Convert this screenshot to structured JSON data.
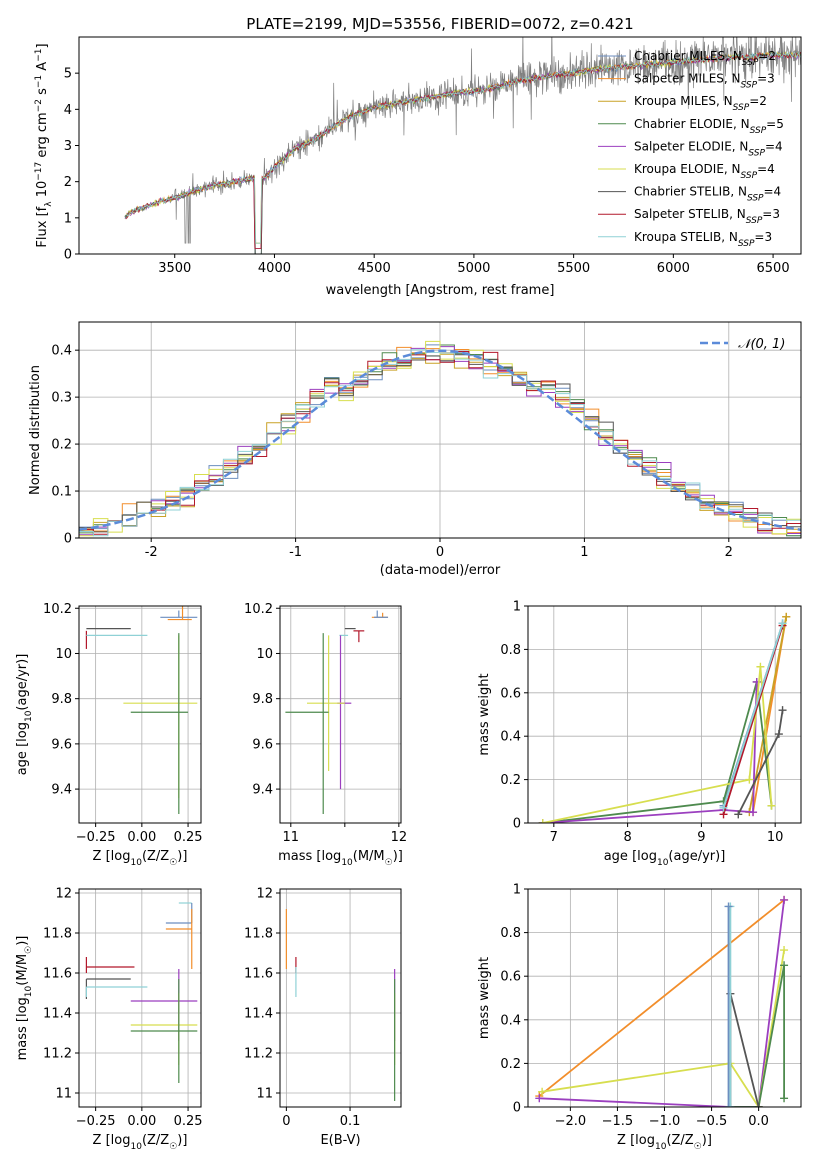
{
  "figure": {
    "title": "PLATE=2199, MJD=53556, FIBERID=0072, z=0.421"
  },
  "colors": {
    "Chabrier MILES": "#6c8ebf",
    "Salpeter MILES": "#f28e2b",
    "Kroupa MILES": "#c9a227",
    "Chabrier ELODIE": "#4e8a4e",
    "Salpeter ELODIE": "#9b3fbf",
    "Kroupa ELODIE": "#d7de4f",
    "Chabrier STELIB": "#555555",
    "Salpeter STELIB": "#b2182b",
    "Kroupa STELIB": "#8fd1d6",
    "data": "#808080",
    "normal": "#5b8bd9"
  },
  "chart_data": [
    {
      "id": "spectrum",
      "type": "line",
      "xlabel": "wavelength [Angstrom, rest frame]",
      "ylabel": "Flux [f_λ 10^-17 erg cm^-2 s^-1 A^-1]",
      "xlim": [
        3020,
        6640
      ],
      "ylim": [
        0,
        6
      ],
      "xticks": [
        3500,
        4000,
        4500,
        5000,
        5500,
        6000,
        6500
      ],
      "yticks": [
        0,
        1,
        2,
        3,
        4,
        5
      ],
      "grid": false,
      "legend_position": "right",
      "legend": [
        {
          "name": "Chabrier MILES",
          "nssp": "2"
        },
        {
          "name": "Salpeter MILES",
          "nssp": "3"
        },
        {
          "name": "Kroupa MILES",
          "nssp": "2"
        },
        {
          "name": "Chabrier ELODIE",
          "nssp": "5"
        },
        {
          "name": "Salpeter ELODIE",
          "nssp": "4"
        },
        {
          "name": "Kroupa ELODIE",
          "nssp": "4"
        },
        {
          "name": "Chabrier STELIB",
          "nssp": "4"
        },
        {
          "name": "Salpeter STELIB",
          "nssp": "3"
        },
        {
          "name": "Kroupa STELIB",
          "nssp": "3"
        }
      ],
      "continuum": {
        "x": [
          3250,
          3300,
          3400,
          3500,
          3600,
          3700,
          3800,
          3900,
          3950,
          4000,
          4100,
          4200,
          4300,
          4400,
          4500,
          4600,
          4700,
          4800,
          4900,
          5000,
          5100,
          5200,
          5300,
          5400,
          5500,
          5600,
          5700,
          5800,
          5900,
          6000,
          6100,
          6200,
          6300,
          6400,
          6500
        ],
        "y": [
          1.05,
          1.2,
          1.4,
          1.55,
          1.75,
          1.9,
          2.0,
          2.1,
          2.1,
          2.4,
          2.9,
          3.15,
          3.55,
          3.85,
          4.05,
          4.15,
          4.25,
          4.35,
          4.45,
          4.5,
          4.6,
          4.75,
          4.85,
          4.95,
          5.0,
          5.1,
          5.15,
          5.2,
          5.25,
          5.3,
          5.35,
          5.4,
          5.45,
          5.45,
          5.5
        ]
      }
    },
    {
      "id": "residuals",
      "type": "line",
      "xlabel": "(data-model)/error",
      "ylabel": "Normed distribution",
      "xlim": [
        -2.5,
        2.5
      ],
      "ylim": [
        0,
        0.46
      ],
      "xticks": [
        -2,
        -1,
        0,
        1,
        2
      ],
      "yticks": [
        0.0,
        0.1,
        0.2,
        0.3,
        0.4
      ],
      "grid": true,
      "legend_position": "top-right",
      "normal_label": "𝒩(0, 1)"
    },
    {
      "id": "age-vs-Z",
      "type": "scatter",
      "xlabel": "Z [log10(Z/Z☉)]",
      "ylabel": "age [log10(age/yr)]",
      "xlim": [
        -0.34,
        0.32
      ],
      "ylim": [
        9.25,
        10.21
      ],
      "xticks": [
        -0.25,
        0.0,
        0.25
      ],
      "xtick_labels": [
        "−0.25",
        "0.00",
        "0.25"
      ],
      "yticks": [
        9.4,
        9.6,
        9.8,
        10.0,
        10.2
      ],
      "grid": true,
      "points": [
        {
          "model": "Chabrier MILES",
          "x": 0.2,
          "y": 10.16,
          "xerr": [
            0.1,
            0.1
          ],
          "yerr": [
            0.0,
            0.03
          ]
        },
        {
          "model": "Salpeter MILES",
          "x": 0.22,
          "y": 10.15,
          "xerr": [
            0.08,
            0.05
          ],
          "yerr": [
            0.0,
            0.08
          ]
        },
        {
          "model": "Salpeter STELIB",
          "x": -0.3,
          "y": 10.1,
          "xerr": [
            0.0,
            0.0
          ],
          "yerr": [
            0.08,
            0.0
          ]
        },
        {
          "model": "Chabrier STELIB",
          "x": -0.3,
          "y": 10.11,
          "xerr": [
            0.0,
            0.24
          ],
          "yerr": [
            0.0,
            0.0
          ]
        },
        {
          "model": "Kroupa STELIB",
          "x": -0.3,
          "y": 10.08,
          "xerr": [
            0.0,
            0.33
          ],
          "yerr": [
            0.0,
            0.0
          ]
        },
        {
          "model": "Kroupa ELODIE",
          "x": 0.2,
          "y": 9.78,
          "xerr": [
            0.3,
            0.1
          ],
          "yerr": [
            0.42,
            0.3
          ]
        },
        {
          "model": "Chabrier ELODIE",
          "x": 0.2,
          "y": 9.74,
          "xerr": [
            0.26,
            0.05
          ],
          "yerr": [
            0.45,
            0.35
          ]
        }
      ]
    },
    {
      "id": "age-vs-mass",
      "type": "scatter",
      "xlabel": "mass [log10(M/M☉)]",
      "ylabel": "",
      "xlim": [
        10.9,
        12.02
      ],
      "ylim": [
        9.25,
        10.21
      ],
      "xticks": [
        11,
        11.5,
        12
      ],
      "xtick_labels": [
        "11",
        "",
        "12"
      ],
      "yticks": [
        9.4,
        9.6,
        9.8,
        10.0,
        10.2
      ],
      "grid": true,
      "points": [
        {
          "model": "Salpeter MILES",
          "x": 11.85,
          "y": 10.16,
          "xerr": [
            0.1,
            0.05
          ],
          "yerr": [
            0.0,
            0.02
          ]
        },
        {
          "model": "Chabrier MILES",
          "x": 11.8,
          "y": 10.16,
          "xerr": [
            0.03,
            0.1
          ],
          "yerr": [
            0.0,
            0.03
          ]
        },
        {
          "model": "Salpeter STELIB",
          "x": 11.63,
          "y": 10.1,
          "xerr": [
            0.05,
            0.05
          ],
          "yerr": [
            0.05,
            0.0
          ]
        },
        {
          "model": "Chabrier STELIB",
          "x": 11.55,
          "y": 10.11,
          "xerr": [
            0.05,
            0.05
          ],
          "yerr": [
            0.0,
            0.0
          ]
        },
        {
          "model": "Kroupa STELIB",
          "x": 11.53,
          "y": 10.08,
          "xerr": [
            0.08,
            0.0
          ],
          "yerr": [
            0.0,
            0.0
          ]
        },
        {
          "model": "Salpeter ELODIE",
          "x": 11.46,
          "y": 9.78,
          "xerr": [
            0.03,
            0.1
          ],
          "yerr": [
            0.38,
            0.3
          ]
        },
        {
          "model": "Kroupa ELODIE",
          "x": 11.35,
          "y": 9.78,
          "xerr": [
            0.2,
            0.15
          ],
          "yerr": [
            0.3,
            0.3
          ]
        },
        {
          "model": "Chabrier ELODIE",
          "x": 11.3,
          "y": 9.74,
          "xerr": [
            0.35,
            0.05
          ],
          "yerr": [
            0.45,
            0.35
          ]
        }
      ]
    },
    {
      "id": "mass-weight-vs-age",
      "type": "line",
      "xlabel": "age [log10(age/yr)]",
      "ylabel": "mass weight",
      "xlim": [
        6.65,
        10.35
      ],
      "ylim": [
        0,
        1
      ],
      "xticks": [
        7,
        8,
        9,
        10
      ],
      "yticks": [
        0.0,
        0.2,
        0.4,
        0.6,
        0.8,
        1.0
      ],
      "grid": true,
      "series": [
        {
          "model": "Chabrier MILES",
          "x": [
            9.3,
            10.1
          ],
          "y": [
            0.08,
            0.92
          ]
        },
        {
          "model": "Salpeter MILES",
          "x": [
            9.7,
            10.15
          ],
          "y": [
            0.05,
            0.95
          ]
        },
        {
          "model": "Kroupa MILES",
          "x": [
            9.65,
            10.15
          ],
          "y": [
            0.05,
            0.95
          ]
        },
        {
          "model": "Chabrier ELODIE",
          "x": [
            6.85,
            9.3,
            9.75,
            9.95
          ],
          "y": [
            0.0,
            0.1,
            0.65,
            0.08
          ]
        },
        {
          "model": "Salpeter ELODIE",
          "x": [
            6.85,
            9.3,
            9.7,
            9.75
          ],
          "y": [
            0.0,
            0.06,
            0.05,
            0.65
          ]
        },
        {
          "model": "Kroupa ELODIE",
          "x": [
            6.85,
            9.65,
            9.8,
            9.95
          ],
          "y": [
            0.0,
            0.2,
            0.72,
            0.08
          ]
        },
        {
          "model": "Chabrier STELIB",
          "x": [
            9.5,
            10.05,
            10.1
          ],
          "y": [
            0.04,
            0.41,
            0.52
          ]
        },
        {
          "model": "Salpeter STELIB",
          "x": [
            9.3,
            10.1
          ],
          "y": [
            0.04,
            0.91
          ]
        },
        {
          "model": "Kroupa STELIB",
          "x": [
            9.3,
            10.1
          ],
          "y": [
            0.07,
            0.92
          ]
        }
      ]
    },
    {
      "id": "mass-vs-Z",
      "type": "scatter",
      "xlabel": "Z [log10(Z/Z☉)]",
      "ylabel": "mass [log10(M/M☉)]",
      "xlim": [
        -0.34,
        0.32
      ],
      "ylim": [
        10.93,
        12.02
      ],
      "xticks": [
        -0.25,
        0.0,
        0.25
      ],
      "xtick_labels": [
        "−0.25",
        "0.00",
        "0.25"
      ],
      "yticks": [
        11.0,
        11.2,
        11.4,
        11.6,
        11.8,
        12.0
      ],
      "grid": true,
      "points": [
        {
          "model": "Kroupa STELIB",
          "x": 0.27,
          "y": 11.95,
          "xerr": [
            0.07,
            0.0
          ],
          "yerr": [
            0.0,
            0.0
          ]
        },
        {
          "model": "Chabrier MILES",
          "x": 0.27,
          "y": 11.85,
          "xerr": [
            0.14,
            0.0
          ],
          "yerr": [
            0.0,
            0.1
          ]
        },
        {
          "model": "Salpeter MILES",
          "x": 0.27,
          "y": 11.82,
          "xerr": [
            0.14,
            0.0
          ],
          "yerr": [
            0.2,
            0.1
          ]
        },
        {
          "model": "Salpeter STELIB",
          "x": -0.3,
          "y": 11.63,
          "xerr": [
            0.0,
            0.26
          ],
          "yerr": [
            0.03,
            0.05
          ]
        },
        {
          "model": "Chabrier STELIB",
          "x": -0.3,
          "y": 11.57,
          "xerr": [
            0.0,
            0.24
          ],
          "yerr": [
            0.1,
            0.0
          ]
        },
        {
          "model": "Kroupa STELIB",
          "x": -0.3,
          "y": 11.53,
          "xerr": [
            0.0,
            0.33
          ],
          "yerr": [
            0.05,
            0.0
          ]
        },
        {
          "model": "Salpeter ELODIE",
          "x": 0.2,
          "y": 11.46,
          "xerr": [
            0.26,
            0.1
          ],
          "yerr": [
            0.2,
            0.16
          ]
        },
        {
          "model": "Kroupa ELODIE",
          "x": 0.2,
          "y": 11.34,
          "xerr": [
            0.26,
            0.1
          ],
          "yerr": [
            0.2,
            0.16
          ]
        },
        {
          "model": "Chabrier ELODIE",
          "x": 0.2,
          "y": 11.31,
          "xerr": [
            0.26,
            0.1
          ],
          "yerr": [
            0.26,
            0.26
          ]
        }
      ]
    },
    {
      "id": "mass-vs-EBV",
      "type": "scatter",
      "xlabel": "E(B-V)",
      "ylabel": "",
      "xlim": [
        -0.01,
        0.18
      ],
      "ylim": [
        10.93,
        12.02
      ],
      "xticks": [
        0.0,
        0.1
      ],
      "yticks": [
        11.0,
        11.2,
        11.4,
        11.6,
        11.8,
        12.0
      ],
      "grid": true,
      "points": [
        {
          "model": "Salpeter MILES",
          "x": 0.0,
          "y": 11.82,
          "xerr": [
            0.0,
            0.0
          ],
          "yerr": [
            0.2,
            0.1
          ]
        },
        {
          "model": "Salpeter STELIB",
          "x": 0.015,
          "y": 11.63,
          "xerr": [
            0.0,
            0.0
          ],
          "yerr": [
            0.03,
            0.05
          ]
        },
        {
          "model": "Kroupa STELIB",
          "x": 0.015,
          "y": 11.53,
          "xerr": [
            0.0,
            0.0
          ],
          "yerr": [
            0.05,
            0.1
          ]
        },
        {
          "model": "Salpeter ELODIE",
          "x": 0.17,
          "y": 11.46,
          "xerr": [
            0.0,
            0.0
          ],
          "yerr": [
            0.2,
            0.16
          ]
        },
        {
          "model": "Kroupa ELODIE",
          "x": 0.17,
          "y": 11.34,
          "xerr": [
            0.0,
            0.0
          ],
          "yerr": [
            0.2,
            0.16
          ]
        },
        {
          "model": "Chabrier ELODIE",
          "x": 0.17,
          "y": 11.31,
          "xerr": [
            0.0,
            0.0
          ],
          "yerr": [
            0.35,
            0.26
          ]
        }
      ]
    },
    {
      "id": "mass-weight-vs-Z",
      "type": "line",
      "xlabel": "Z [log10(Z/Z☉)]",
      "ylabel": "mass weight",
      "xlim": [
        -2.45,
        0.45
      ],
      "ylim": [
        0,
        1
      ],
      "xticks": [
        -2.0,
        -1.5,
        -1.0,
        -0.5,
        0.0
      ],
      "xtick_labels": [
        "−2.0",
        "−1.5",
        "−1.0",
        "−0.5",
        "0.0"
      ],
      "yticks": [
        0.0,
        0.2,
        0.4,
        0.6,
        0.8,
        1.0
      ],
      "grid": true,
      "series": [
        {
          "model": "Salpeter MILES",
          "x": [
            -2.33,
            0.27
          ],
          "y": [
            0.05,
            0.95
          ]
        },
        {
          "model": "Salpeter ELODIE",
          "x": [
            -2.33,
            -0.3,
            0.0,
            0.27
          ],
          "y": [
            0.04,
            0.0,
            0.0,
            0.95
          ]
        },
        {
          "model": "Kroupa ELODIE",
          "x": [
            -2.3,
            -0.3,
            0.0,
            0.27
          ],
          "y": [
            0.07,
            0.2,
            0.0,
            0.72
          ]
        },
        {
          "model": "Chabrier ELODIE",
          "x": [
            -0.3,
            0.0,
            0.27,
            0.27
          ],
          "y": [
            0.0,
            0.0,
            0.65,
            0.04
          ]
        },
        {
          "model": "Chabrier STELIB",
          "x": [
            -0.3,
            -0.3,
            0.0
          ],
          "y": [
            0.0,
            0.52,
            0.0
          ]
        },
        {
          "model": "Kroupa STELIB",
          "x": [
            -0.3,
            -0.3
          ],
          "y": [
            0.0,
            0.92
          ]
        },
        {
          "model": "Chabrier MILES",
          "x": [
            -0.32,
            -0.32
          ],
          "y": [
            0.0,
            0.92
          ]
        }
      ]
    }
  ]
}
